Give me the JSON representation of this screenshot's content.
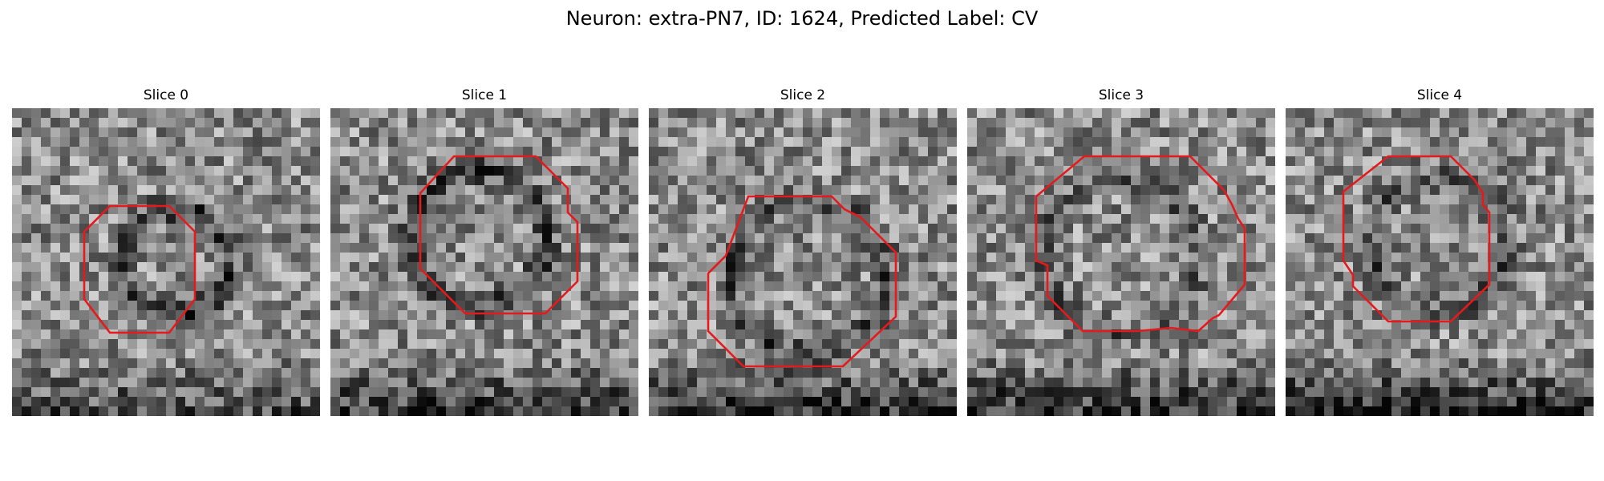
{
  "figure": {
    "title": "Neuron: extra-PN7, ID: 1624, Predicted Label: CV"
  },
  "panels": [
    {
      "title": "Slice 0"
    },
    {
      "title": "Slice 1"
    },
    {
      "title": "Slice 2"
    },
    {
      "title": "Slice 3"
    },
    {
      "title": "Slice 4"
    }
  ],
  "colors": {
    "contour": "#e41a1c",
    "background": "#ffffff"
  }
}
